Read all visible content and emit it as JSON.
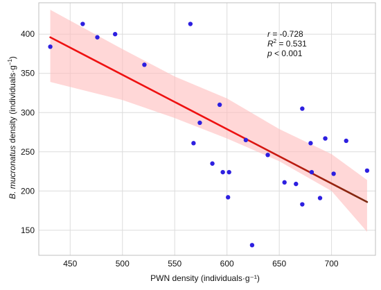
{
  "chart_data": {
    "type": "scatter",
    "title": "",
    "xlabel": "PWN density (individuals·g⁻¹)",
    "ylabel_parts": [
      "B. mucronatus",
      " density (individuals·g",
      "−1",
      ")"
    ],
    "xlim": [
      420,
      742
    ],
    "ylim": [
      118,
      440
    ],
    "xticks": [
      450,
      500,
      550,
      600,
      650,
      700
    ],
    "yticks": [
      150,
      200,
      250,
      300,
      350,
      400
    ],
    "grid": true,
    "points": [
      {
        "x": 431,
        "y": 384
      },
      {
        "x": 462,
        "y": 413
      },
      {
        "x": 476,
        "y": 396
      },
      {
        "x": 493,
        "y": 400
      },
      {
        "x": 521,
        "y": 361
      },
      {
        "x": 565,
        "y": 413
      },
      {
        "x": 568,
        "y": 261
      },
      {
        "x": 574,
        "y": 287
      },
      {
        "x": 586,
        "y": 235
      },
      {
        "x": 593,
        "y": 310
      },
      {
        "x": 596,
        "y": 224
      },
      {
        "x": 601,
        "y": 192
      },
      {
        "x": 602,
        "y": 224
      },
      {
        "x": 618,
        "y": 265
      },
      {
        "x": 624,
        "y": 131
      },
      {
        "x": 639,
        "y": 246
      },
      {
        "x": 655,
        "y": 211
      },
      {
        "x": 666,
        "y": 209
      },
      {
        "x": 672,
        "y": 305
      },
      {
        "x": 672,
        "y": 183
      },
      {
        "x": 680,
        "y": 261
      },
      {
        "x": 681,
        "y": 224
      },
      {
        "x": 689,
        "y": 191
      },
      {
        "x": 694,
        "y": 267
      },
      {
        "x": 702,
        "y": 222
      },
      {
        "x": 714,
        "y": 264
      },
      {
        "x": 734,
        "y": 226
      }
    ],
    "regression": {
      "x": [
        431,
        734
      ],
      "y": [
        396,
        186
      ]
    },
    "confidence_band": {
      "x": [
        431,
        500,
        550,
        600,
        650,
        700,
        734
      ],
      "lower": [
        339,
        316,
        293,
        267,
        238,
        200,
        148
      ],
      "upper": [
        431,
        381,
        346,
        318,
        279,
        247,
        214
      ]
    },
    "point_color": "#2d1fe0",
    "line_color": "#ee1111",
    "line_color_right": "#7a2a10",
    "band_color": "#ffbcbc",
    "annotation": {
      "r_label": "r",
      "r_value": " = -0.728",
      "r2_label": "R",
      "r2_sup": "2",
      "r2_value": " = 0.531",
      "p_label": "p",
      "p_value": " < 0.001"
    }
  }
}
